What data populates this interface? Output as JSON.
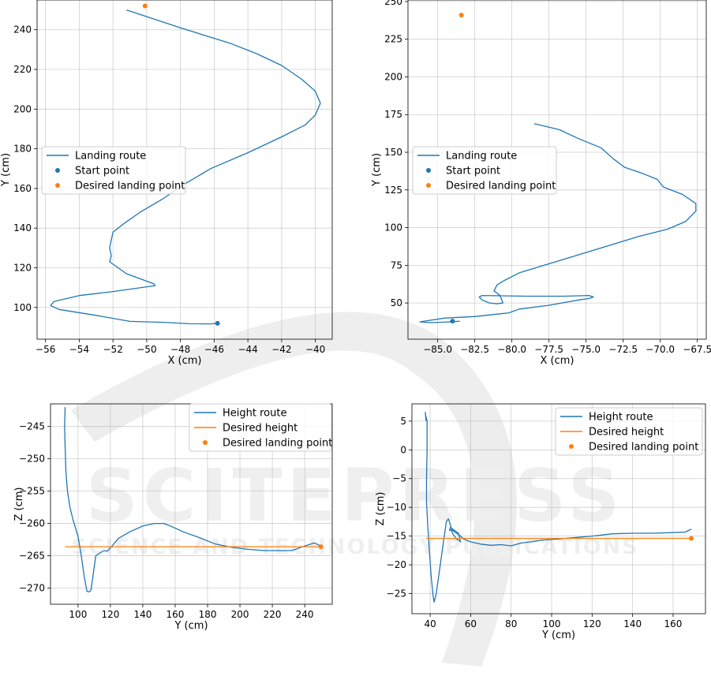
{
  "chart_data": [
    {
      "type": "line",
      "xlabel": "X (cm)",
      "ylabel": "Y (cm)",
      "xlim": [
        -56.5,
        -39.0
      ],
      "ylim": [
        84,
        255
      ],
      "xticks": [
        -56,
        -54,
        -52,
        -50,
        -48,
        -46,
        -44,
        -42,
        -40
      ],
      "yticks": [
        100,
        120,
        140,
        160,
        180,
        200,
        220,
        240
      ],
      "grid": true,
      "legend_position": "center-left",
      "colors": {
        "route": "#1f77b4",
        "start": "#1f77b4",
        "target": "#ff7f0e"
      },
      "series": [
        {
          "name": "Landing route",
          "kind": "line",
          "x": [
            -51.2,
            -48.0,
            -45.0,
            -43.5,
            -42.0,
            -40.8,
            -40.0,
            -39.7,
            -40.0,
            -40.6,
            -42.0,
            -44.0,
            -46.2,
            -47.8,
            -49.0,
            -50.4,
            -51.4,
            -52.0,
            -52.2,
            -52.1,
            -52.2,
            -51.2,
            -49.6,
            -49.5,
            -52.0,
            -54.0,
            -55.5,
            -55.7,
            -55.2,
            -53.0,
            -51.0,
            -49.0,
            -47.5,
            -46.2,
            -45.8
          ],
          "y": [
            250.0,
            241.0,
            233.0,
            228.0,
            222.0,
            215.0,
            209.0,
            203.0,
            197.0,
            192.0,
            186.0,
            178.0,
            170.0,
            162.0,
            155.0,
            148.0,
            142.0,
            138.0,
            130.0,
            126.0,
            123.0,
            117.0,
            112.0,
            111.0,
            108.0,
            106.0,
            103.0,
            101.0,
            99.0,
            96.0,
            93.0,
            92.5,
            91.8,
            91.7,
            92.0
          ]
        },
        {
          "name": "Start point",
          "kind": "scatter",
          "x": [
            -45.8
          ],
          "y": [
            92.0
          ]
        },
        {
          "name": "Desired landing point",
          "kind": "scatter",
          "x": [
            -50.1
          ],
          "y": [
            252.0
          ]
        }
      ]
    },
    {
      "type": "line",
      "xlabel": "X (cm)",
      "ylabel": "Y (cm)",
      "xlim": [
        -87.0,
        -66.9
      ],
      "ylim": [
        26,
        251
      ],
      "xticks": [
        -85.0,
        -82.5,
        -80.0,
        -77.5,
        -75.0,
        -72.5,
        -70.0,
        -67.5
      ],
      "xtick_labels": [
        "-85.0",
        "-82.5",
        "-80.0",
        "-77.5",
        "-75.0",
        "-72.5",
        "-70.0",
        "-67.5"
      ],
      "yticks": [
        50,
        75,
        100,
        125,
        150,
        175,
        200,
        225,
        250
      ],
      "grid": true,
      "legend_position": "center-left",
      "colors": {
        "route": "#1f77b4",
        "start": "#1f77b4",
        "target": "#ff7f0e"
      },
      "series": [
        {
          "name": "Landing route",
          "kind": "line",
          "x": [
            -78.5,
            -76.8,
            -75.5,
            -74.0,
            -73.2,
            -72.4,
            -71.2,
            -70.2,
            -69.8,
            -68.5,
            -67.6,
            -67.6,
            -68.3,
            -69.5,
            -71.5,
            -73.5,
            -75.5,
            -77.5,
            -79.5,
            -80.5,
            -81.0,
            -81.2,
            -80.8,
            -80.6,
            -81.0,
            -81.5,
            -82.0,
            -82.2,
            -82.0,
            -79.0,
            -76.5,
            -74.8,
            -74.5,
            -74.8,
            -75.5,
            -77.5,
            -79.5,
            -80.2,
            -82.5,
            -84.5,
            -86.2,
            -85.5,
            -84.0,
            -83.5
          ],
          "y": [
            169.0,
            165.0,
            159.0,
            153.0,
            146.0,
            140.0,
            136.0,
            132.0,
            127.0,
            122.0,
            116.0,
            111.0,
            104.0,
            99.0,
            94.0,
            88.0,
            82.0,
            76.0,
            70.0,
            65.0,
            62.0,
            58.0,
            55.0,
            50.0,
            49.5,
            50.0,
            52.0,
            54.0,
            55.0,
            54.5,
            54.5,
            55.0,
            54.0,
            53.0,
            52.0,
            48.5,
            46.0,
            43.5,
            41.0,
            40.0,
            37.5,
            37.0,
            37.5,
            38.0
          ]
        },
        {
          "name": "Start point",
          "kind": "scatter",
          "x": [
            -84.0
          ],
          "y": [
            38.0
          ]
        },
        {
          "name": "Desired landing point",
          "kind": "scatter",
          "x": [
            -83.4
          ],
          "y": [
            241.0
          ]
        }
      ]
    },
    {
      "type": "line",
      "xlabel": "Y (cm)",
      "ylabel": "Z (cm)",
      "xlim": [
        83,
        257
      ],
      "ylim": [
        -272.5,
        -241.5
      ],
      "xticks": [
        100,
        120,
        140,
        160,
        180,
        200,
        220,
        240
      ],
      "yticks": [
        -245,
        -250,
        -255,
        -260,
        -265,
        -270
      ],
      "grid": true,
      "legend_position": "upper-right",
      "colors": {
        "route": "#1f77b4",
        "desired": "#ff7f0e",
        "target": "#ff7f0e"
      },
      "series": [
        {
          "name": "Height route",
          "kind": "line",
          "x": [
            92.0,
            91.7,
            92.0,
            92.5,
            93.5,
            95.0,
            97.0,
            100.0,
            102.0,
            104.0,
            105.5,
            107.0,
            108.0,
            111.0,
            114.0,
            116.0,
            118.0,
            121.0,
            125.0,
            132.0,
            140.0,
            147.0,
            153.0,
            158.0,
            165.0,
            175.0,
            185.0,
            195.0,
            205.0,
            215.0,
            225.0,
            232.0,
            240.0,
            246.0,
            250.0
          ],
          "y": [
            -242.0,
            -245.0,
            -248.0,
            -252.0,
            -255.0,
            -257.5,
            -259.5,
            -262.0,
            -265.0,
            -268.5,
            -270.5,
            -270.6,
            -270.3,
            -265.0,
            -264.5,
            -264.2,
            -264.3,
            -263.5,
            -262.3,
            -261.3,
            -260.4,
            -260.0,
            -260.0,
            -260.5,
            -261.3,
            -262.2,
            -263.2,
            -263.7,
            -264.0,
            -264.2,
            -264.2,
            -264.2,
            -263.5,
            -263.0,
            -263.5
          ]
        },
        {
          "name": "Desired height",
          "kind": "line",
          "x": [
            92.0,
            250.0
          ],
          "y": [
            -263.6,
            -263.6
          ]
        },
        {
          "name": "Desired landing point",
          "kind": "scatter",
          "x": [
            250.0
          ],
          "y": [
            -263.6
          ]
        }
      ]
    },
    {
      "type": "line",
      "xlabel": "Y (cm)",
      "ylabel": "Z (cm)",
      "xlim": [
        31,
        176
      ],
      "ylim": [
        -28.5,
        8.0
      ],
      "xticks": [
        40,
        60,
        80,
        100,
        120,
        140,
        160
      ],
      "yticks": [
        5,
        0,
        -5,
        -10,
        -15,
        -20,
        -25
      ],
      "grid": true,
      "legend_position": "upper-right",
      "colors": {
        "route": "#1f77b4",
        "desired": "#ff7f0e",
        "target": "#ff7f0e"
      },
      "series": [
        {
          "name": "Height route",
          "kind": "line",
          "x": [
            38.0,
            37.6,
            37.8,
            38.5,
            38.5,
            38.2,
            38.2,
            38.8,
            39.5,
            40.5,
            41.5,
            42.0,
            43.0,
            45.0,
            47.0,
            48.0,
            49.0,
            50.0,
            51.0,
            53.0,
            54.5,
            55.0,
            54.0,
            52.0,
            50.0,
            49.5,
            51.0,
            53.0,
            55.0,
            56.5,
            60.0,
            65.0,
            70.0,
            75.0,
            80.0,
            85.0,
            90.0,
            95.0,
            100.0,
            110.0,
            120.0,
            125.0,
            130.0,
            140.0,
            150.0,
            160.0,
            166.0,
            169.0
          ],
          "y": [
            5.0,
            6.5,
            6.0,
            5.0,
            0.0,
            -5.0,
            -9.0,
            -13.0,
            -17.0,
            -22.0,
            -25.5,
            -26.5,
            -25.0,
            -20.0,
            -15.0,
            -12.5,
            -12.0,
            -13.0,
            -14.5,
            -15.5,
            -15.8,
            -16.0,
            -14.5,
            -14.0,
            -13.5,
            -14.0,
            -14.0,
            -14.5,
            -15.0,
            -15.5,
            -16.0,
            -16.4,
            -16.6,
            -16.5,
            -16.7,
            -16.2,
            -16.0,
            -15.7,
            -15.6,
            -15.3,
            -15.0,
            -14.8,
            -14.6,
            -14.5,
            -14.5,
            -14.4,
            -14.3,
            -13.8
          ]
        },
        {
          "name": "Desired height",
          "kind": "line",
          "x": [
            38.0,
            169.0
          ],
          "y": [
            -15.4,
            -15.4
          ]
        },
        {
          "name": "Desired landing point",
          "kind": "scatter",
          "x": [
            169.0
          ],
          "y": [
            -15.4
          ]
        }
      ]
    }
  ],
  "watermark": {
    "line1": "SCITEPRESS",
    "line2": "SCIENCE AND TECHNOLOGY PUBLICATIONS"
  }
}
